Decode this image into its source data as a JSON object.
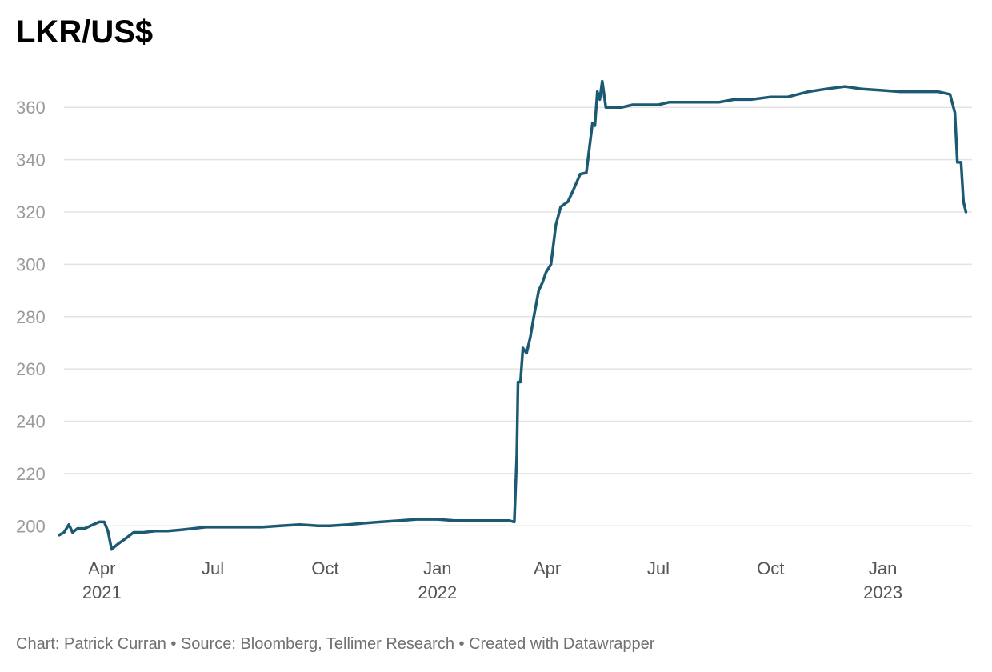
{
  "chart_data": {
    "type": "line",
    "title": "LKR/US$",
    "xlabel": "",
    "ylabel": "",
    "ylim": [
      190,
      372
    ],
    "xlim": [
      "2021-03-01",
      "2023-03-15"
    ],
    "grid": true,
    "line_color": "#1b5a72",
    "gridline_color": "#e3e3e3",
    "y_ticks": [
      200,
      220,
      240,
      260,
      280,
      300,
      320,
      340,
      360
    ],
    "x_ticks": [
      {
        "date": "2021-04-01",
        "label": "Apr",
        "year": "2021"
      },
      {
        "date": "2021-07-01",
        "label": "Jul",
        "year": ""
      },
      {
        "date": "2021-10-01",
        "label": "Oct",
        "year": ""
      },
      {
        "date": "2022-01-01",
        "label": "Jan",
        "year": "2022"
      },
      {
        "date": "2022-04-01",
        "label": "Apr",
        "year": ""
      },
      {
        "date": "2022-07-01",
        "label": "Jul",
        "year": ""
      },
      {
        "date": "2022-10-01",
        "label": "Oct",
        "year": ""
      },
      {
        "date": "2023-01-01",
        "label": "Jan",
        "year": "2023"
      }
    ],
    "series": [
      {
        "x": [
          "2021-02-25",
          "2021-03-01",
          "2021-03-05",
          "2021-03-08",
          "2021-03-12",
          "2021-03-18",
          "2021-03-25",
          "2021-03-30",
          "2021-04-03",
          "2021-04-06",
          "2021-04-09",
          "2021-04-14",
          "2021-04-20",
          "2021-04-27",
          "2021-05-05",
          "2021-05-15",
          "2021-05-25",
          "2021-06-05",
          "2021-06-15",
          "2021-06-25",
          "2021-07-10",
          "2021-07-25",
          "2021-08-10",
          "2021-08-25",
          "2021-09-10",
          "2021-09-25",
          "2021-10-05",
          "2021-10-20",
          "2021-11-01",
          "2021-11-15",
          "2021-12-01",
          "2021-12-15",
          "2022-01-01",
          "2022-01-15",
          "2022-02-01",
          "2022-02-15",
          "2022-03-01",
          "2022-03-05",
          "2022-03-07",
          "2022-03-08",
          "2022-03-10",
          "2022-03-12",
          "2022-03-15",
          "2022-03-18",
          "2022-03-21",
          "2022-03-25",
          "2022-03-28",
          "2022-03-31",
          "2022-04-04",
          "2022-04-08",
          "2022-04-12",
          "2022-04-18",
          "2022-04-22",
          "2022-04-28",
          "2022-05-03",
          "2022-05-08",
          "2022-05-10",
          "2022-05-12",
          "2022-05-14",
          "2022-05-16",
          "2022-05-19",
          "2022-05-24",
          "2022-06-01",
          "2022-06-10",
          "2022-06-20",
          "2022-07-01",
          "2022-07-10",
          "2022-07-20",
          "2022-08-01",
          "2022-08-10",
          "2022-08-20",
          "2022-09-01",
          "2022-09-15",
          "2022-10-01",
          "2022-10-15",
          "2022-11-01",
          "2022-11-15",
          "2022-12-01",
          "2022-12-15",
          "2023-01-01",
          "2023-01-15",
          "2023-02-01",
          "2023-02-15",
          "2023-02-25",
          "2023-03-01",
          "2023-03-03",
          "2023-03-06",
          "2023-03-08",
          "2023-03-10"
        ],
        "values": [
          196.5,
          197.5,
          200.5,
          197.5,
          199,
          199,
          200.5,
          201.5,
          201.5,
          198,
          191,
          193,
          195,
          197.5,
          197.5,
          198,
          198,
          198.5,
          199,
          199.5,
          199.5,
          199.5,
          199.5,
          200,
          200.5,
          200,
          200,
          200.5,
          201,
          201.5,
          202,
          202.5,
          202.5,
          202,
          202,
          202,
          202,
          201.5,
          227,
          255,
          255,
          268,
          266,
          272,
          280,
          290,
          293,
          297,
          300,
          315,
          322,
          324,
          328,
          334.5,
          335,
          354,
          353,
          366,
          363,
          370,
          360,
          360,
          360,
          361,
          361,
          361,
          362,
          362,
          362,
          362,
          362,
          363,
          363,
          364,
          364,
          366,
          367,
          368,
          367,
          366.5,
          366,
          366,
          366,
          365,
          358,
          339,
          339,
          324,
          320
        ]
      }
    ]
  },
  "footer_text": "Chart: Patrick Curran • Source: Bloomberg, Tellimer Research • Created with Datawrapper"
}
